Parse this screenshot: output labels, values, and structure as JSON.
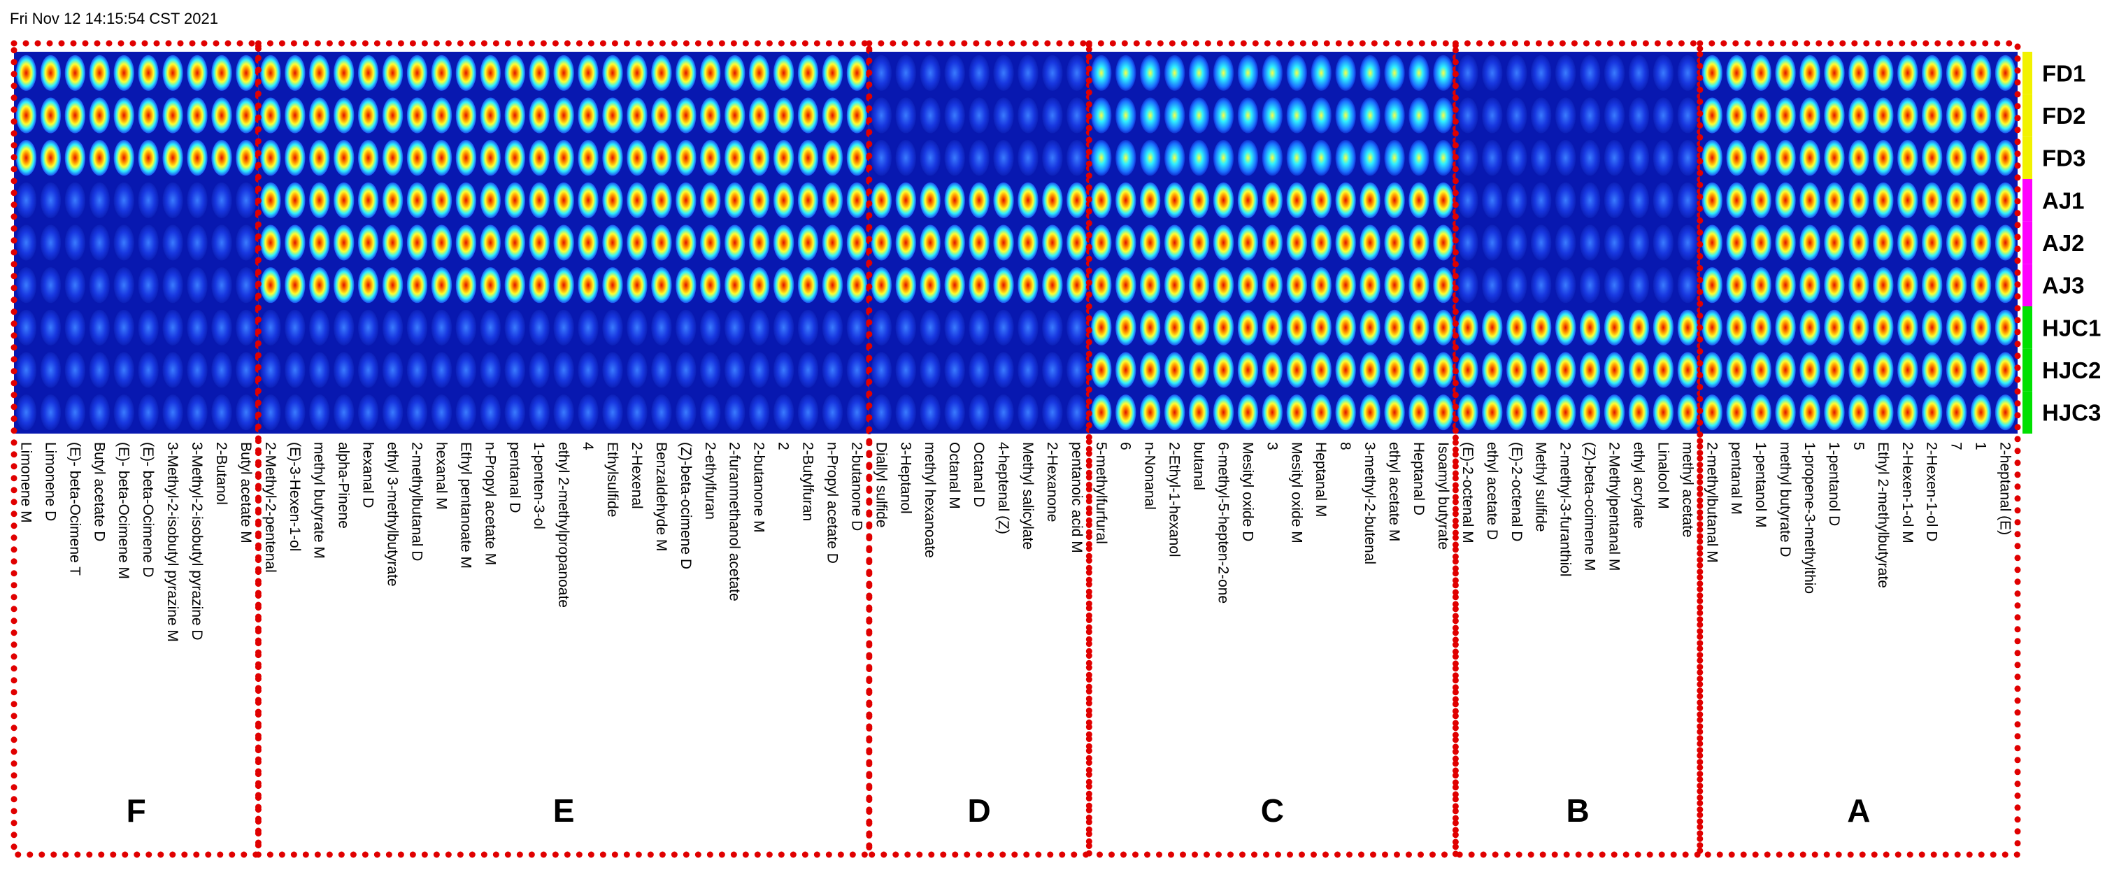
{
  "timestamp": "Fri Nov 12 14:15:54 CST 2021",
  "rows": [
    {
      "label": "FD1",
      "color": "#f2f200"
    },
    {
      "label": "FD2",
      "color": "#f2f200"
    },
    {
      "label": "FD3",
      "color": "#f2f200"
    },
    {
      "label": "AJ1",
      "color": "#ff00ff"
    },
    {
      "label": "AJ2",
      "color": "#ff00ff"
    },
    {
      "label": "AJ3",
      "color": "#ff00ff"
    },
    {
      "label": "HJC1",
      "color": "#00e000"
    },
    {
      "label": "HJC2",
      "color": "#00e000"
    },
    {
      "label": "HJC3",
      "color": "#00e000"
    }
  ],
  "groups": [
    {
      "label": "F",
      "columns": [
        "Limonene M",
        "Limonene D",
        "(E)- beta-Ocimene T",
        "Butyl acetate D",
        "(E)- beta-Ocimene M",
        "(E)- beta-Ocimene D",
        "3-Methyl-2-isobutyl pyrazine M",
        "3-Methyl-2-isobutyl pyrazine D",
        "2-Butanol",
        "Butyl acetate M"
      ],
      "intensity": [
        3,
        3,
        3,
        1,
        1,
        1,
        1,
        1,
        1
      ]
    },
    {
      "label": "E",
      "columns": [
        "2-Methyl-2-pentenal",
        "(E)-3-Hexen-1-ol",
        "methyl butyrate M",
        "alpha-Pinene",
        "hexanal D",
        "ethyl 3-methylbutyrate",
        "2-methylbutanal D",
        "hexanal M",
        "Ethyl pentanoate M",
        "n-Propyl acetate M",
        "pentanal D",
        "1-penten-3-ol",
        "ethyl 2-methylpropanoate",
        "4",
        "Ethylsulfide",
        "2-Hexenal",
        "Benzaldehyde M",
        "(Z)-beta-ocimene D",
        "2-ethylfuran",
        "2-furanmethanol acetate",
        "2-butanone M",
        "2",
        "2-Butylfuran",
        "n-Propyl acetate D",
        "2-butanone D"
      ],
      "intensity": [
        3,
        3,
        3,
        3,
        3,
        3,
        1,
        1,
        1
      ]
    },
    {
      "label": "D",
      "columns": [
        "Diallyl sulfide",
        "3-Heptanol",
        "methyl hexanoate",
        "Octanal M",
        "Octanal D",
        "4-heptenal (Z)",
        "Methyl salicylate",
        "2-Hexanone",
        "pentanoic acid M"
      ],
      "intensity": [
        1,
        1,
        1,
        3,
        3,
        3,
        1,
        1,
        1
      ]
    },
    {
      "label": "C",
      "columns": [
        "5-methylfurfural",
        "6",
        "n-Nonanal",
        "2-Ethyl-1-hexanol",
        "butanal",
        "6-methyl-5-hepten-2-one",
        "Mesityl oxide D",
        "3",
        "Mesityl oxide M",
        "Heptanal M",
        "8",
        "3-methyl-2-butenal",
        "ethyl acetate M",
        "Heptanal D",
        "Isoamyl butyrate"
      ],
      "intensity": [
        2,
        2,
        2,
        3,
        3,
        3,
        3,
        3,
        3
      ]
    },
    {
      "label": "B",
      "columns": [
        "(E)-2-octenal M",
        "ethyl acetate D",
        "(E)-2-octenal D",
        "Methyl sulfide",
        "2-methyl-3-furanthiol",
        "(Z)-beta-ocimene M",
        "2-Methylpentanal M",
        "ethyl acrylate",
        "Linalool M",
        "methyl acetate"
      ],
      "intensity": [
        1,
        1,
        1,
        1,
        1,
        1,
        3,
        3,
        3
      ]
    },
    {
      "label": "A",
      "columns": [
        "2-methylbutanal M",
        "pentanal M",
        "1-pentanol M",
        "methyl butyrate D",
        "1-propene-3-methylthio",
        "1-pentanol D",
        "5",
        "Ethyl 2-methylbutyrate",
        "2-Hexen-1-ol M",
        "2-Hexen-1-ol D",
        "7",
        "1",
        "2-heptanal (E)"
      ],
      "intensity": [
        3,
        3,
        3,
        3,
        3,
        3,
        3,
        3,
        3
      ]
    }
  ]
}
